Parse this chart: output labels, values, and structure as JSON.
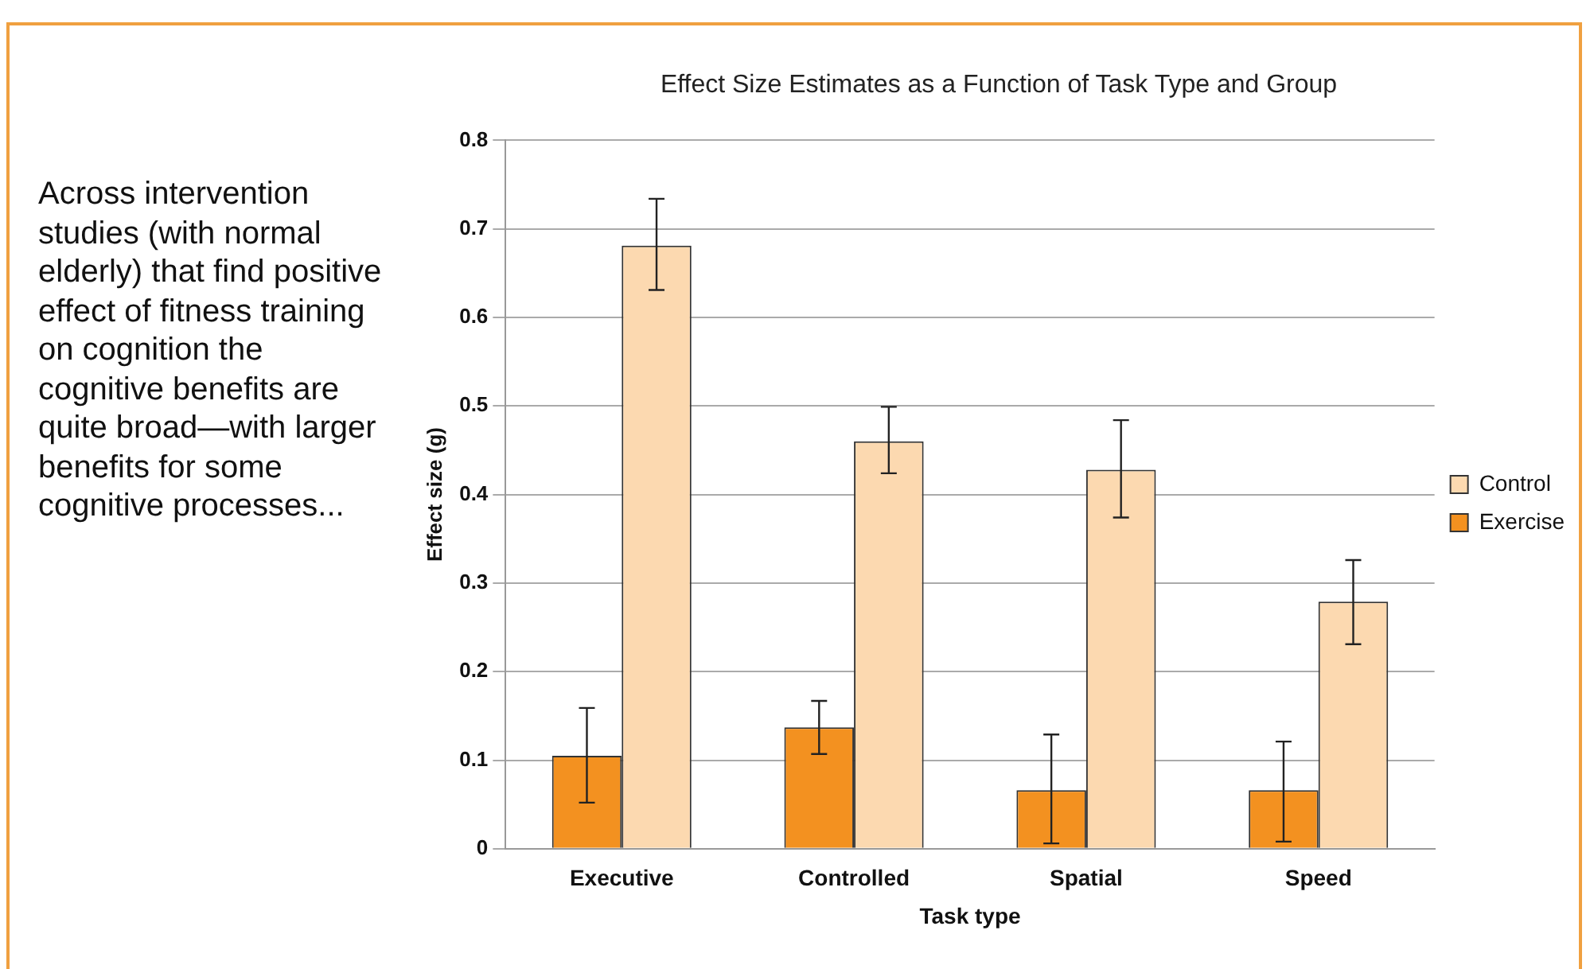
{
  "chart_data": {
    "type": "bar",
    "title": "Effect Size Estimates as a Function of Task Type and Group",
    "xlabel": "Task type",
    "ylabel": "Effect size (g)",
    "categories": [
      "Executive",
      "Controlled",
      "Spatial",
      "Speed"
    ],
    "series": [
      {
        "name": "Exercise",
        "color": "#f39120",
        "values": [
          0.105,
          0.137,
          0.066,
          0.066
        ],
        "errors": [
          [
            0.052,
            0.159
          ],
          [
            0.107,
            0.167
          ],
          [
            0.006,
            0.129
          ],
          [
            0.008,
            0.121
          ]
        ]
      },
      {
        "name": "Control",
        "color": "#fcd9b0",
        "values": [
          0.681,
          0.46,
          0.428,
          0.279
        ],
        "errors": [
          [
            0.631,
            0.734
          ],
          [
            0.424,
            0.499
          ],
          [
            0.374,
            0.484
          ],
          [
            0.231,
            0.326
          ]
        ]
      }
    ],
    "ylim": [
      0,
      0.8
    ],
    "yticks": [
      0,
      0.1,
      0.2,
      0.3,
      0.4,
      0.5,
      0.6,
      0.7,
      0.8
    ],
    "grid": "y",
    "legend": "right",
    "annotations": [
      "Across intervention studies (with normal elderly) that find positive effect of fitness training on cognition the cognitive benefits are quite broad—with larger benefits for some cognitive processes..."
    ]
  }
}
